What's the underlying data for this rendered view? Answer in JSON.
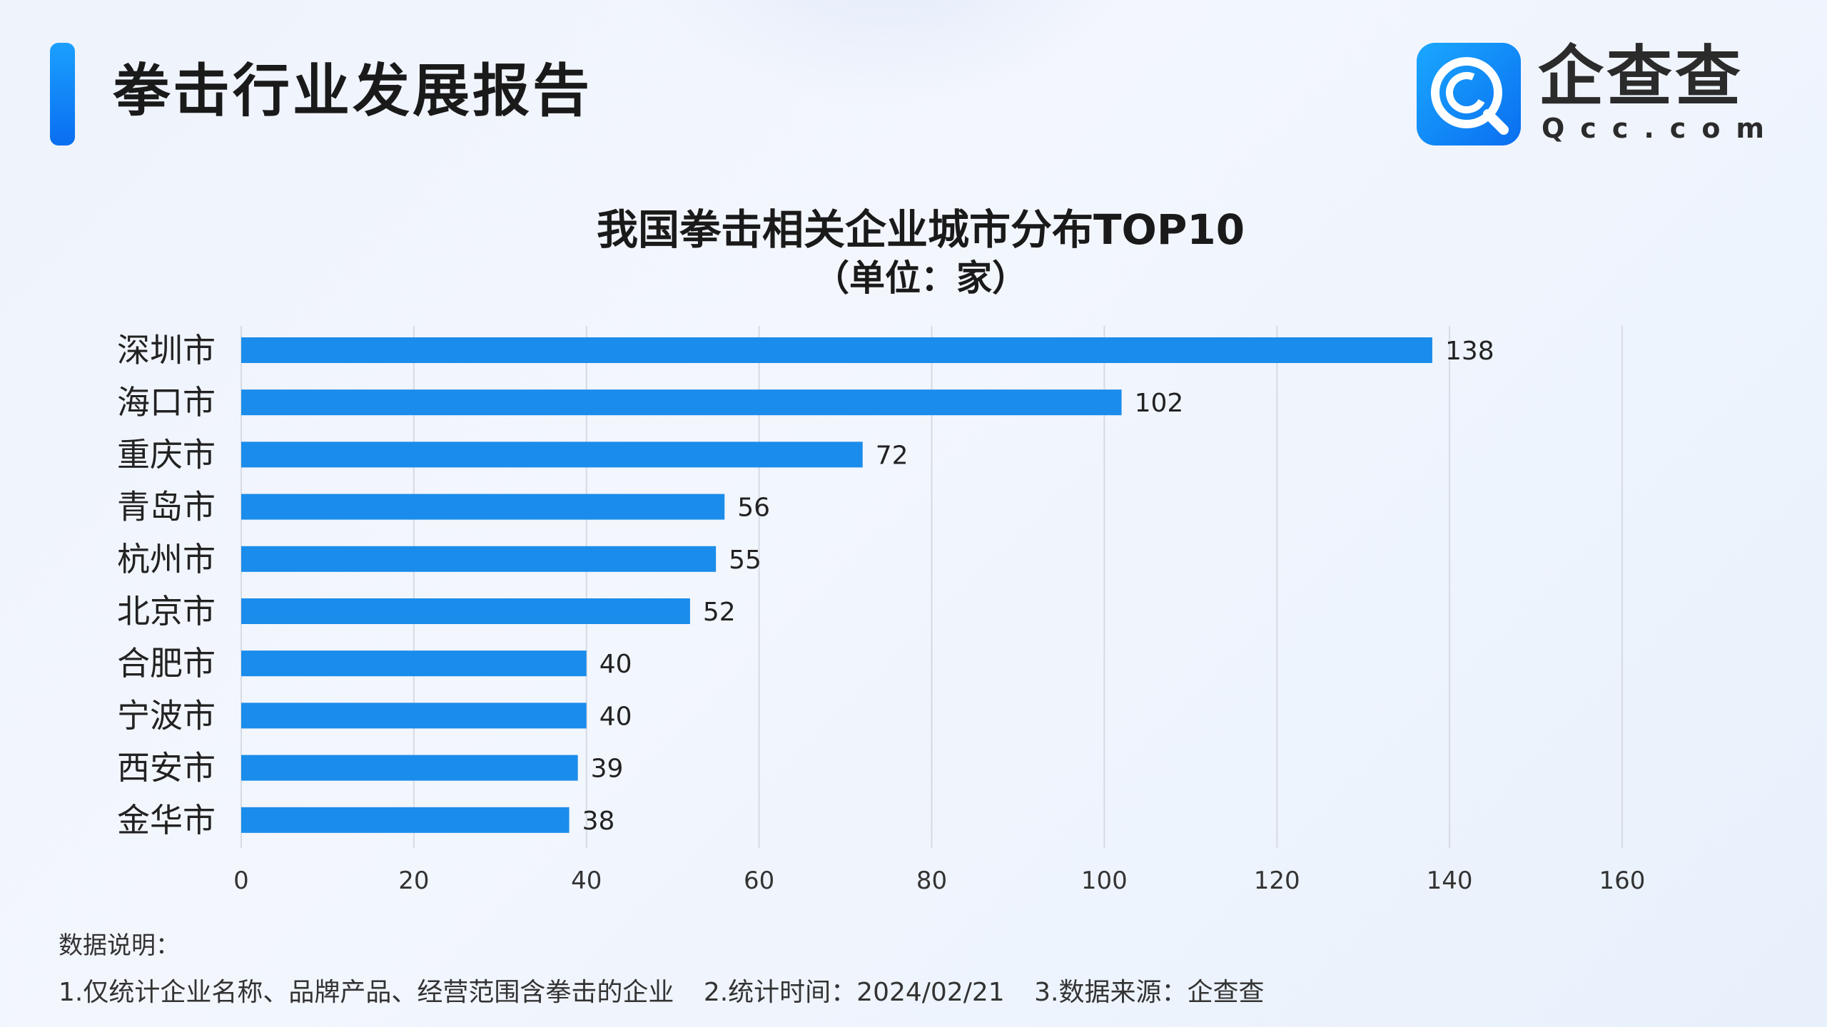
{
  "header": {
    "title": "拳击行业发展报告",
    "logo_text": "企查查",
    "logo_sub": "Qcc.com"
  },
  "chart_data": {
    "type": "bar",
    "orientation": "horizontal",
    "title": "我国拳击相关企业城市分布TOP10",
    "subtitle": "（单位：家）",
    "categories": [
      "深圳市",
      "海口市",
      "重庆市",
      "青岛市",
      "杭州市",
      "北京市",
      "合肥市",
      "宁波市",
      "西安市",
      "金华市"
    ],
    "values": [
      138,
      102,
      72,
      56,
      55,
      52,
      40,
      40,
      39,
      38
    ],
    "xlim": [
      0,
      160
    ],
    "xticks": [
      0,
      20,
      40,
      60,
      80,
      100,
      120,
      140,
      160
    ],
    "grid": "vertical",
    "bar_color": "#1a8ceb"
  },
  "footer": {
    "heading": "数据说明：",
    "notes": [
      "1.仅统计企业名称、品牌产品、经营范围含拳击的企业",
      "2.统计时间：2024/02/21",
      "3.数据来源：企查查"
    ]
  }
}
